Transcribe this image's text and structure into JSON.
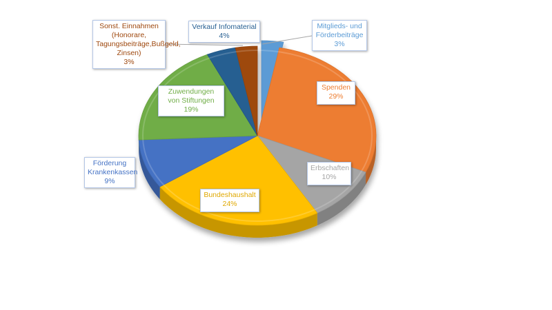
{
  "chart_data": {
    "type": "pie",
    "style": "3d-exploded-pie",
    "legend": "none",
    "slices": [
      {
        "label": "Mitglieds- und Förderbeiträge",
        "value": 3,
        "value_label": "3%",
        "color": "#5b9bd5",
        "label_color": "#5b9bd5"
      },
      {
        "label": "Spenden",
        "value": 29,
        "value_label": "29%",
        "color": "#ed7d31",
        "label_color": "#ed7d31"
      },
      {
        "label": "Erbschaften",
        "value": 10,
        "value_label": "10%",
        "color": "#a5a5a5",
        "label_color": "#a5a5a5"
      },
      {
        "label": "Bundeshaushalt",
        "value": 24,
        "value_label": "24%",
        "color": "#ffc000",
        "label_color": "#e0a800"
      },
      {
        "label": "Förderung Krankenkassen",
        "value": 9,
        "value_label": "9%",
        "color": "#4472c4",
        "label_color": "#4472c4"
      },
      {
        "label": "Zuwendungen von Stiftungen",
        "value": 19,
        "value_label": "19%",
        "color": "#70ad47",
        "label_color": "#70ad47"
      },
      {
        "label": "Verkauf Infomaterial",
        "value": 4,
        "value_label": "4%",
        "color": "#255e91",
        "label_color": "#255e91"
      },
      {
        "label": "Sonst. Einnahmen (Honorare, Tagungsbeiträge,Bußgeld, Zinsen)",
        "value": 3,
        "value_label": "3%",
        "color": "#9e480e",
        "label_color": "#9e480e"
      }
    ]
  }
}
